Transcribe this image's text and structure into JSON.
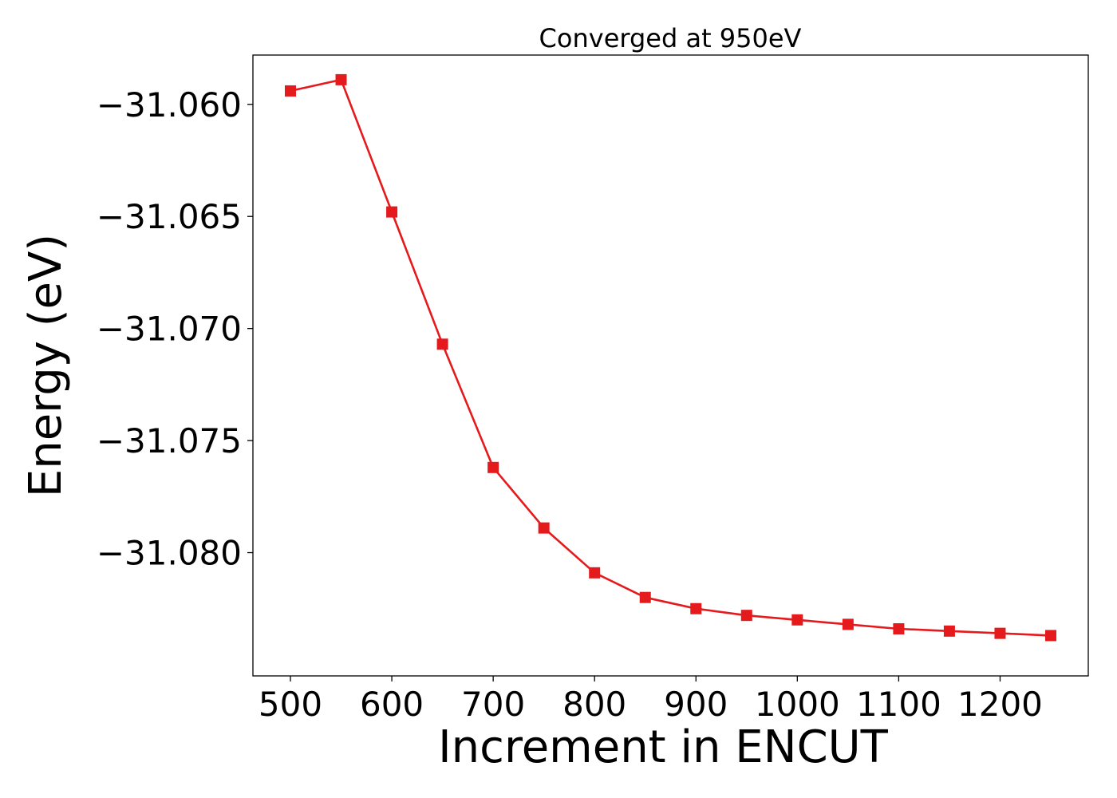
{
  "chart_data": {
    "type": "line",
    "title": "Converged at 950eV",
    "xlabel": "Increment in ENCUT",
    "ylabel": "Energy (eV)",
    "xlim": [
      463,
      1287
    ],
    "ylim": [
      -31.0855,
      -31.0578
    ],
    "x_ticks": [
      500,
      600,
      700,
      800,
      900,
      1000,
      1100,
      1200
    ],
    "x_tick_labels": [
      "500",
      "600",
      "700",
      "800",
      "900",
      "1000",
      "1100",
      "1200"
    ],
    "y_ticks": [
      -31.06,
      -31.065,
      -31.07,
      -31.075,
      -31.08
    ],
    "y_tick_labels": [
      "−31.060",
      "−31.065",
      "−31.070",
      "−31.075",
      "−31.080"
    ],
    "grid": false,
    "legend": "none",
    "series": [
      {
        "color": "#e41a1c",
        "marker": "square",
        "x": [
          500,
          550,
          600,
          650,
          700,
          750,
          800,
          850,
          900,
          950,
          1000,
          1050,
          1100,
          1150,
          1200,
          1250
        ],
        "y": [
          -31.0594,
          -31.0589,
          -31.0648,
          -31.0707,
          -31.0762,
          -31.0789,
          -31.0809,
          -31.082,
          -31.0825,
          -31.0828,
          -31.083,
          -31.0832,
          -31.0834,
          -31.0835,
          -31.0836,
          -31.0837
        ]
      }
    ]
  }
}
